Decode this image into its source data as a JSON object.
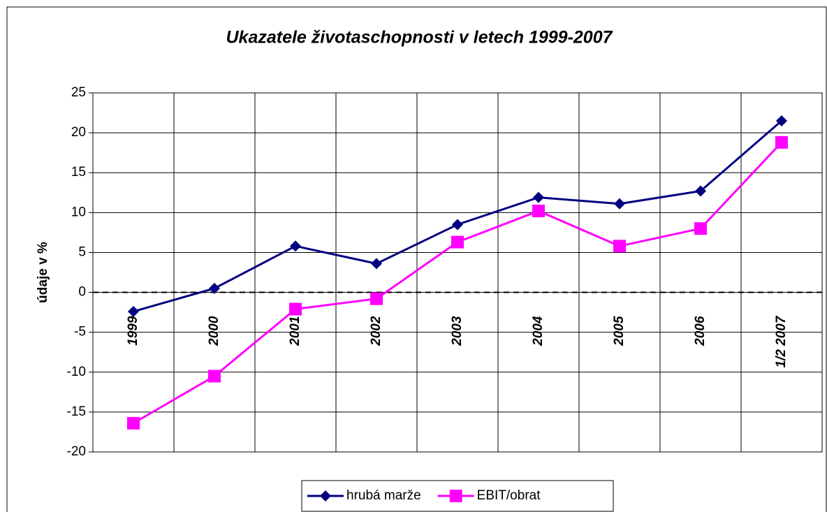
{
  "chart_data": {
    "type": "line",
    "title": "Ukazatele životaschopnosti v letech 1999-2007",
    "y_label": "údaje v %",
    "categories": [
      "1999",
      "2000",
      "2001",
      "2002",
      "2003",
      "2004",
      "2005",
      "2006",
      "1/2 2007"
    ],
    "series": [
      {
        "name": "hrubá marže",
        "color": "#000080",
        "marker": "diamond",
        "values": [
          -2.4,
          0.5,
          5.8,
          3.6,
          8.5,
          11.9,
          11.1,
          12.7,
          21.5
        ]
      },
      {
        "name": "EBIT/obrat",
        "color": "#ff00ff",
        "marker": "square",
        "values": [
          -16.4,
          -10.5,
          -2.1,
          -0.8,
          6.3,
          10.2,
          5.8,
          8.0,
          18.8
        ]
      }
    ],
    "ylim": [
      -20,
      25
    ],
    "yticks": [
      -20,
      -15,
      -10,
      -5,
      0,
      5,
      10,
      15,
      20,
      25
    ],
    "grid": true,
    "legend": "bottom"
  }
}
